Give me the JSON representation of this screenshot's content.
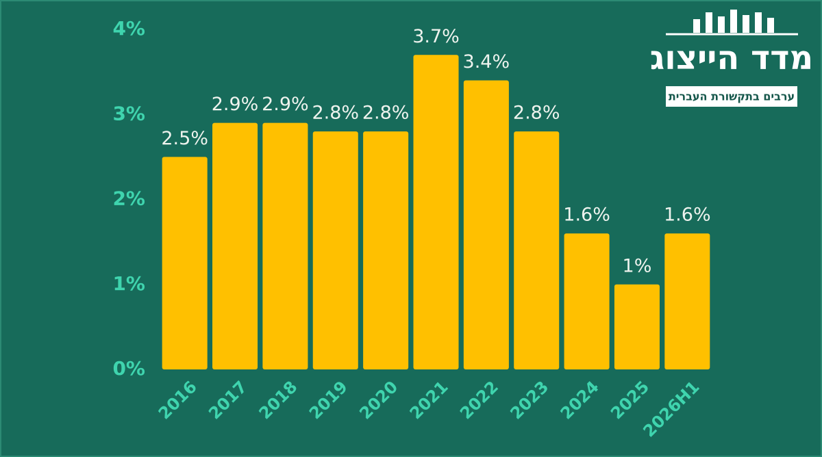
{
  "chart_data": {
    "type": "bar",
    "categories": [
      "2016",
      "2017",
      "2018",
      "2019",
      "2020",
      "2021",
      "2022",
      "2023",
      "2024",
      "2025",
      "2026H1"
    ],
    "values": [
      2.5,
      2.9,
      2.9,
      2.8,
      2.8,
      3.7,
      3.4,
      2.8,
      1.6,
      1,
      1.6
    ],
    "value_labels": [
      "2.5%",
      "2.9%",
      "2.9%",
      "2.8%",
      "2.8%",
      "3.7%",
      "3.4%",
      "2.8%",
      "1.6%",
      "1%",
      "1.6%"
    ],
    "color": "#ffc000",
    "ylim": [
      0,
      4
    ],
    "yticks": [
      {
        "value": 0,
        "label": "0%"
      },
      {
        "value": 1,
        "label": "1%"
      },
      {
        "value": 2,
        "label": "2%"
      },
      {
        "value": 3,
        "label": "3%"
      },
      {
        "value": 4,
        "label": "4%"
      }
    ],
    "grid": false
  },
  "logo": {
    "title": "מדד הייצוג",
    "subtitle": "ערבים בתקשורת העברית"
  }
}
